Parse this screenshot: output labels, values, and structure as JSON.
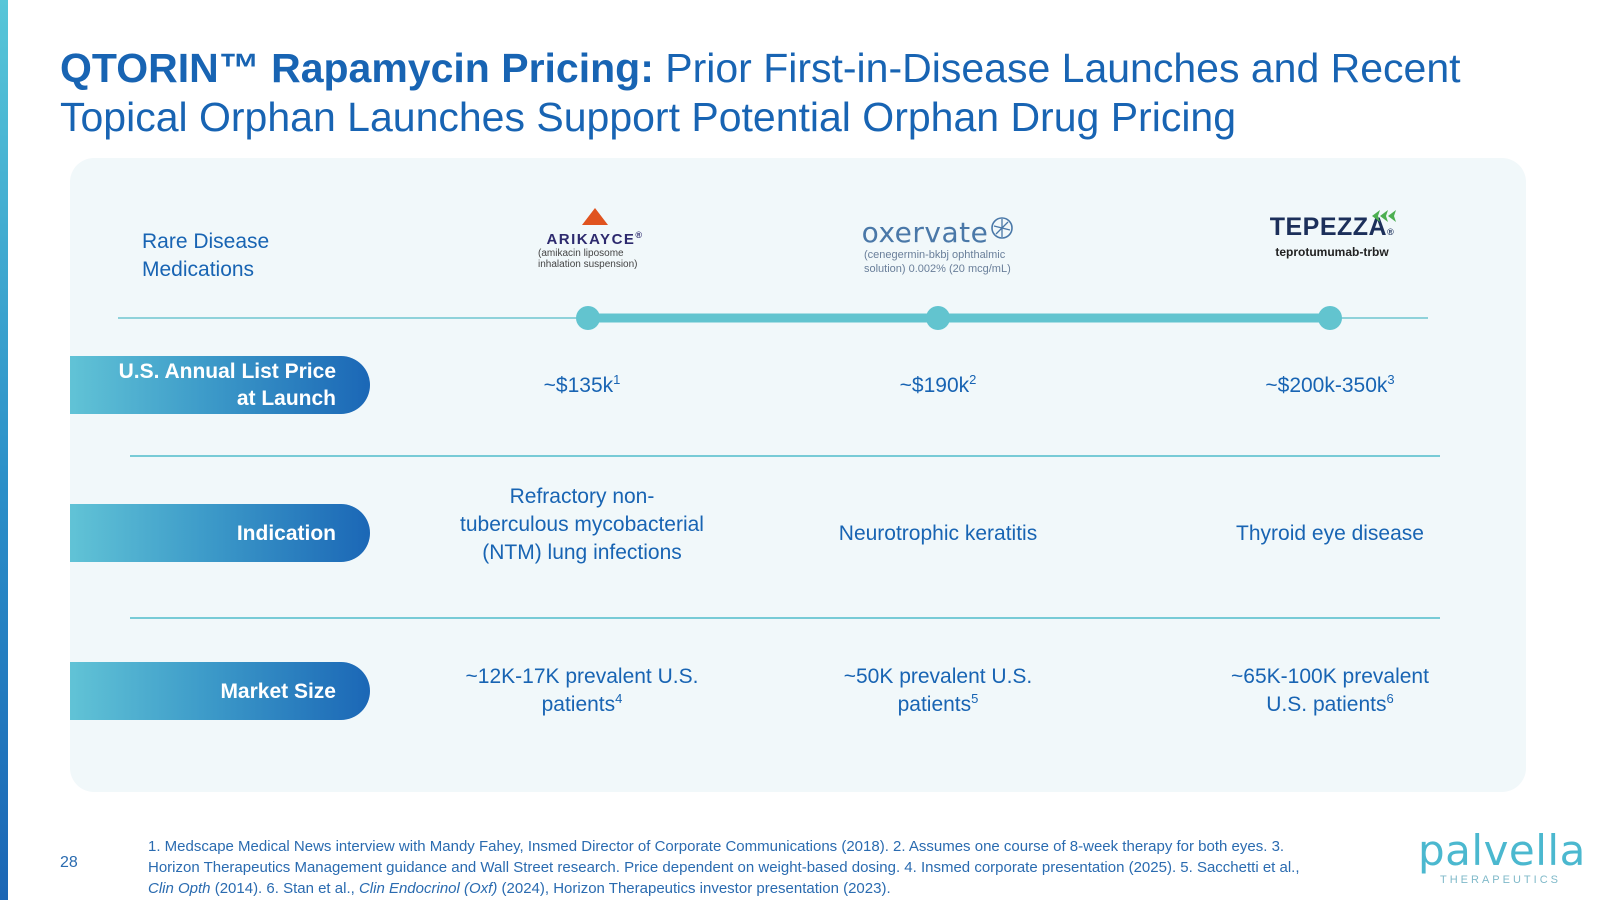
{
  "slide": {
    "title_bold": "QTORIN™ Rapamycin Pricing:",
    "title_rest": " Prior First-in-Disease Launches and Recent Topical Orphan Launches Support Potential Orphan Drug Pricing",
    "page_number": "28"
  },
  "table": {
    "header_label": "Rare Disease Medications",
    "drugs": [
      {
        "logo_name": "ARIKAYCE",
        "logo_mark": "®",
        "logo_sub_1": "(amikacin liposome",
        "logo_sub_2": "inhalation suspension)",
        "price": "~$135k",
        "price_ref": "1",
        "indication": "Refractory non-tuberculous mycobacterial (NTM) lung infections",
        "market_size": "~12K-17K prevalent U.S. patients",
        "market_ref": "4"
      },
      {
        "logo_name": "oxervate",
        "logo_sub_1": "(cenegermin-bkbj ophthalmic",
        "logo_sub_2": "solution) 0.002% (20 mcg/mL)",
        "price": "~$190k",
        "price_ref": "2",
        "indication": "Neurotrophic keratitis",
        "market_size": "~50K prevalent U.S. patients",
        "market_ref": "5"
      },
      {
        "logo_name": "TEPEZZA",
        "logo_mark": "®",
        "logo_sub_1": "teprotumumab-trbw",
        "price": "~$200k-350k",
        "price_ref": "3",
        "indication": "Thyroid eye disease",
        "market_size": "~65K-100K prevalent U.S. patients",
        "market_ref": "6"
      }
    ],
    "row_labels": {
      "price_line1": "U.S. Annual List Price",
      "price_line2": "at Launch",
      "indication": "Indication",
      "market": "Market Size"
    }
  },
  "footnotes": {
    "part1": "1. Medscape Medical News interview with Mandy Fahey, Insmed Director of Corporate Communications (2018). 2. Assumes one course of 8-week therapy for both eyes. 3. Horizon Therapeutics Management guidance and Wall Street research. Price dependent on weight-based dosing. 4. Insmed corporate presentation (2025). 5. Sacchetti et al., ",
    "italic1": "Clin Opth",
    "part2": " (2014). 6. Stan et al., ",
    "italic2": "Clin Endocrinol (Oxf)",
    "part3": " (2024), Horizon Therapeutics investor presentation (2023)."
  },
  "brand": {
    "name": "palvella",
    "sub": "THERAPEUTICS"
  },
  "colors": {
    "title": "#1864b3",
    "accent_teal": "#5ec5d0",
    "pill_start": "#61c3d6",
    "pill_end": "#1b67b6",
    "panel_bg": "#f1f8fa"
  }
}
